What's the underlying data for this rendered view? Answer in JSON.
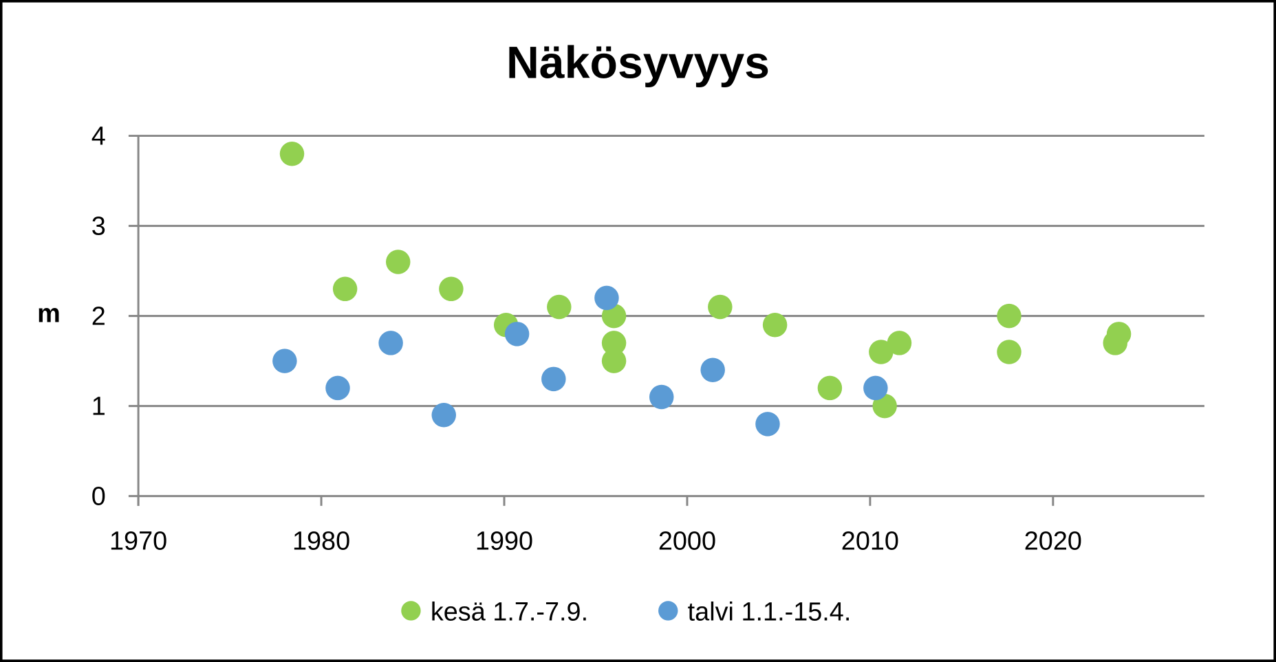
{
  "chart_data": {
    "type": "scatter",
    "title": "Näkösyvyys",
    "xlabel": "",
    "ylabel": "m",
    "xlim": [
      1970,
      2028
    ],
    "ylim": [
      0,
      4
    ],
    "xticks": [
      1970,
      1980,
      1990,
      2000,
      2010,
      2020
    ],
    "yticks": [
      0,
      1,
      2,
      3,
      4
    ],
    "grid": "horizontal",
    "legend_position": "bottom",
    "series": [
      {
        "name": "kesä 1.7.-7.9.",
        "color": "#92d050",
        "x": [
          1978.4,
          1981.3,
          1984.2,
          1987.1,
          1990.1,
          1993.0,
          1996.0,
          1996.0,
          1996.0,
          2001.8,
          2004.8,
          2007.8,
          2010.6,
          2010.8,
          2011.6,
          2017.6,
          2017.6,
          2023.6,
          2023.4
        ],
        "y": [
          3.8,
          2.3,
          2.6,
          2.3,
          1.9,
          2.1,
          2.0,
          1.7,
          1.5,
          2.1,
          1.9,
          1.2,
          1.6,
          1.0,
          1.7,
          2.0,
          1.6,
          1.8,
          1.7
        ]
      },
      {
        "name": "talvi 1.1.-15.4.",
        "color": "#5b9bd5",
        "x": [
          1978.0,
          1980.9,
          1983.8,
          1986.7,
          1990.7,
          1992.7,
          1995.6,
          1998.6,
          2001.4,
          2004.4,
          2010.3
        ],
        "y": [
          1.5,
          1.2,
          1.7,
          0.9,
          1.8,
          1.3,
          2.2,
          1.1,
          1.4,
          0.8,
          1.2
        ]
      }
    ]
  }
}
